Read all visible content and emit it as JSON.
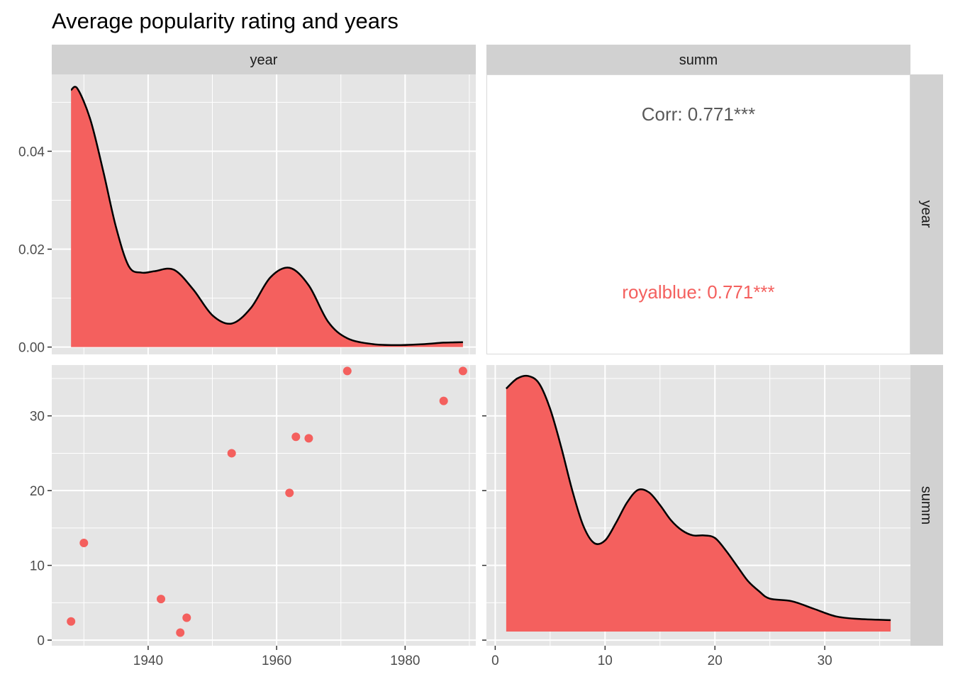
{
  "title": "Average popularity rating and years",
  "strips": {
    "col_year": "year",
    "col_summ": "summ",
    "row_year": "year",
    "row_summ": "summ"
  },
  "colors": {
    "fill": "#F4605E",
    "line": "#000000",
    "panel_bg": "#E5E5E5",
    "strip_bg": "#D1D1D1",
    "grid": "#FFFFFF",
    "corr_text": "#595959",
    "group_corr_text": "#F4605E"
  },
  "chart_data": [
    {
      "type": "area",
      "panel": "year-density",
      "x": [
        1928,
        1929,
        1931,
        1933,
        1935,
        1937,
        1939,
        1941,
        1944,
        1947,
        1950,
        1953,
        1956,
        1959,
        1962,
        1965,
        1968,
        1971,
        1975,
        1979,
        1983,
        1986,
        1989
      ],
      "y": [
        0.0525,
        0.0528,
        0.0465,
        0.036,
        0.0245,
        0.0165,
        0.0152,
        0.0155,
        0.0158,
        0.0118,
        0.0065,
        0.0048,
        0.008,
        0.0142,
        0.0162,
        0.0126,
        0.0052,
        0.0018,
        0.0006,
        0.0004,
        0.0006,
        0.0009,
        0.001
      ],
      "xlim": [
        1925,
        1991
      ],
      "ylim": [
        -0.0015,
        0.0557
      ],
      "x_ticks": [
        "1940",
        "1960",
        "1980"
      ],
      "y_ticks": [
        "0.00",
        "0.02",
        "0.04"
      ]
    },
    {
      "type": "scatter",
      "panel": "year-vs-summ",
      "points": [
        {
          "x": 1928,
          "y": 2.5
        },
        {
          "x": 1930,
          "y": 13
        },
        {
          "x": 1942,
          "y": 5.5
        },
        {
          "x": 1945,
          "y": 1
        },
        {
          "x": 1946,
          "y": 3
        },
        {
          "x": 1953,
          "y": 25
        },
        {
          "x": 1962,
          "y": 19.7
        },
        {
          "x": 1963,
          "y": 27.2
        },
        {
          "x": 1965,
          "y": 27
        },
        {
          "x": 1971,
          "y": 36
        },
        {
          "x": 1986,
          "y": 32
        },
        {
          "x": 1989,
          "y": 36
        }
      ],
      "xlim": [
        1925,
        1991
      ],
      "ylim": [
        -0.75,
        36.8
      ],
      "x_ticks": [
        "1940",
        "1960",
        "1980"
      ],
      "y_ticks": [
        "0",
        "10",
        "20",
        "30"
      ]
    },
    {
      "type": "area",
      "panel": "summ-density",
      "x": [
        1,
        2,
        3,
        4,
        5,
        6,
        7,
        8,
        9,
        10,
        11,
        12,
        13,
        14,
        15,
        16,
        17,
        18,
        19,
        20,
        21,
        22,
        23,
        24,
        25,
        27,
        29,
        31,
        33,
        36
      ],
      "y": [
        0.96,
        1.0,
        1.01,
        0.98,
        0.88,
        0.73,
        0.56,
        0.42,
        0.35,
        0.36,
        0.43,
        0.51,
        0.56,
        0.55,
        0.5,
        0.44,
        0.4,
        0.38,
        0.38,
        0.37,
        0.32,
        0.26,
        0.2,
        0.16,
        0.13,
        0.12,
        0.09,
        0.06,
        0.05,
        0.045
      ],
      "xlim": [
        -0.8,
        37.8
      ],
      "x_ticks": [
        "0",
        "10",
        "20",
        "30"
      ]
    },
    {
      "type": "table",
      "panel": "correlation",
      "overall": "Corr: 0.771***",
      "group": "royalblue: 0.771***"
    }
  ]
}
